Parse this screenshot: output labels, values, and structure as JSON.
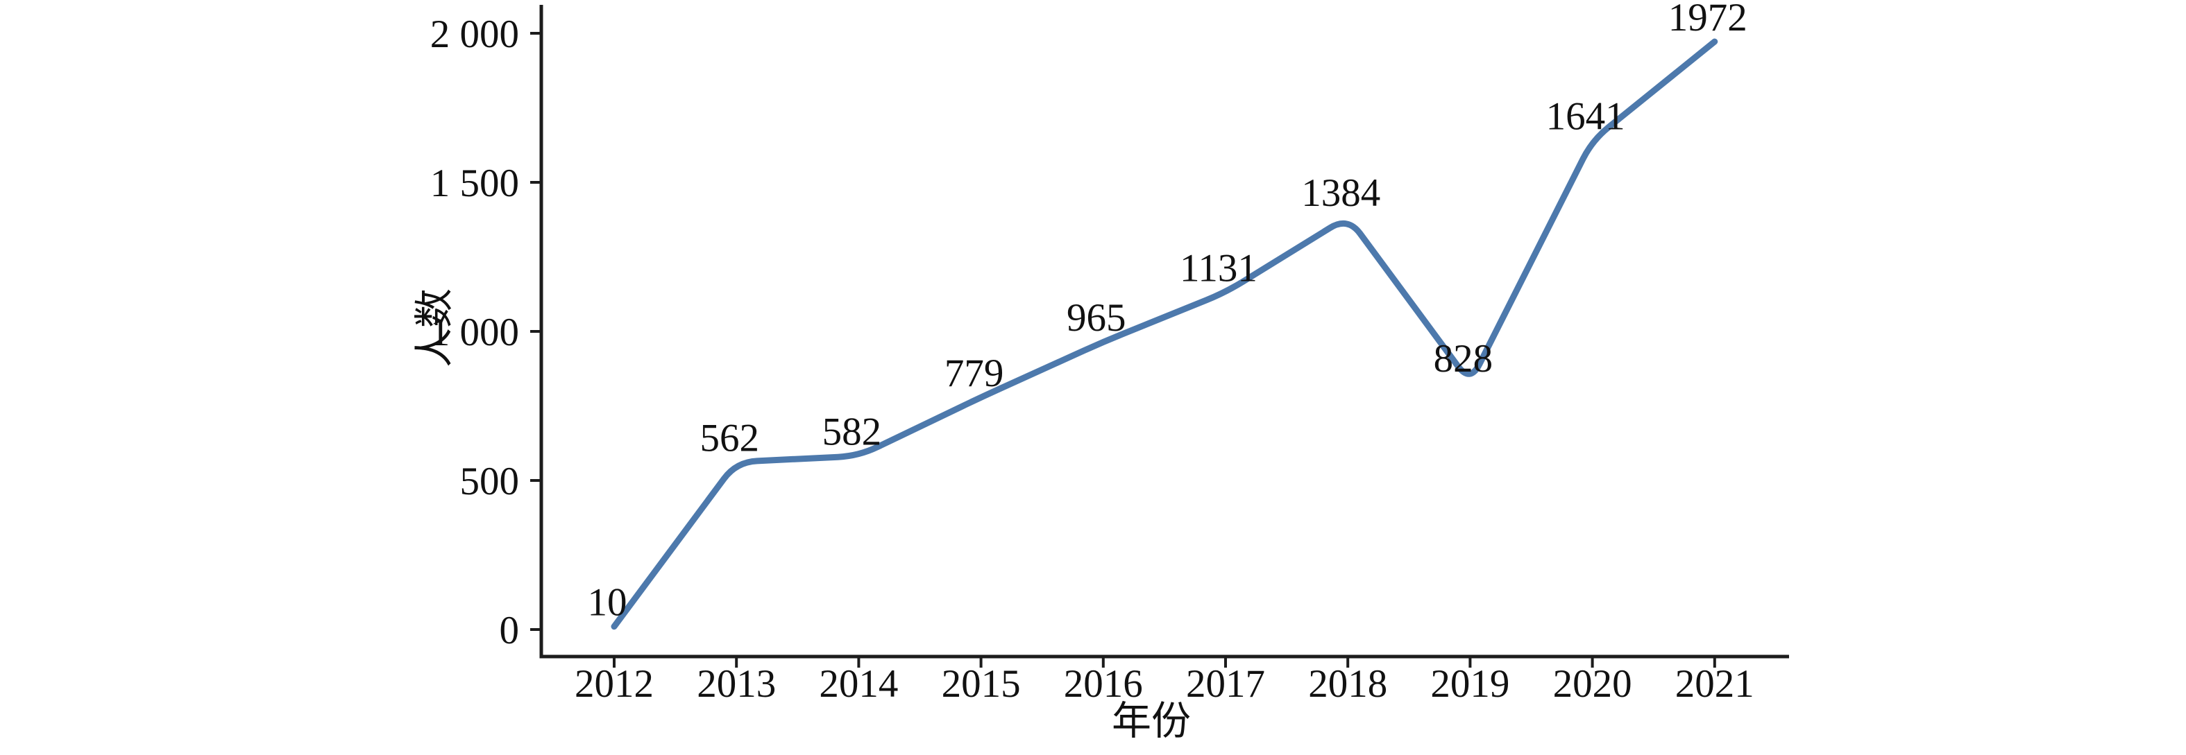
{
  "chart_data": {
    "type": "line",
    "x": [
      "2012",
      "2013",
      "2014",
      "2015",
      "2016",
      "2017",
      "2018",
      "2019",
      "2020",
      "2021"
    ],
    "series": [
      {
        "name": "人数",
        "values": [
          10,
          562,
          582,
          779,
          965,
          1131,
          1384,
          828,
          1641,
          1972
        ]
      }
    ],
    "data_labels": [
      "10",
      "562",
      "582",
      "779",
      "965",
      "1131",
      "1384",
      "828",
      "1641",
      "1972"
    ],
    "title": "",
    "xlabel": "年份",
    "ylabel": "人数",
    "y_ticks": [
      {
        "value": 0,
        "label": "0"
      },
      {
        "value": 500,
        "label": "500"
      },
      {
        "value": 1000,
        "label": "1 000"
      },
      {
        "value": 1500,
        "label": "1 500"
      },
      {
        "value": 2000,
        "label": "2 000"
      }
    ],
    "ylim": [
      0,
      2090
    ],
    "grid": false,
    "legend": "none",
    "line_color": "#4d79ac",
    "axis_color": "#1c1c1c",
    "text_color": "#111111",
    "background_color": "#ffffff"
  }
}
